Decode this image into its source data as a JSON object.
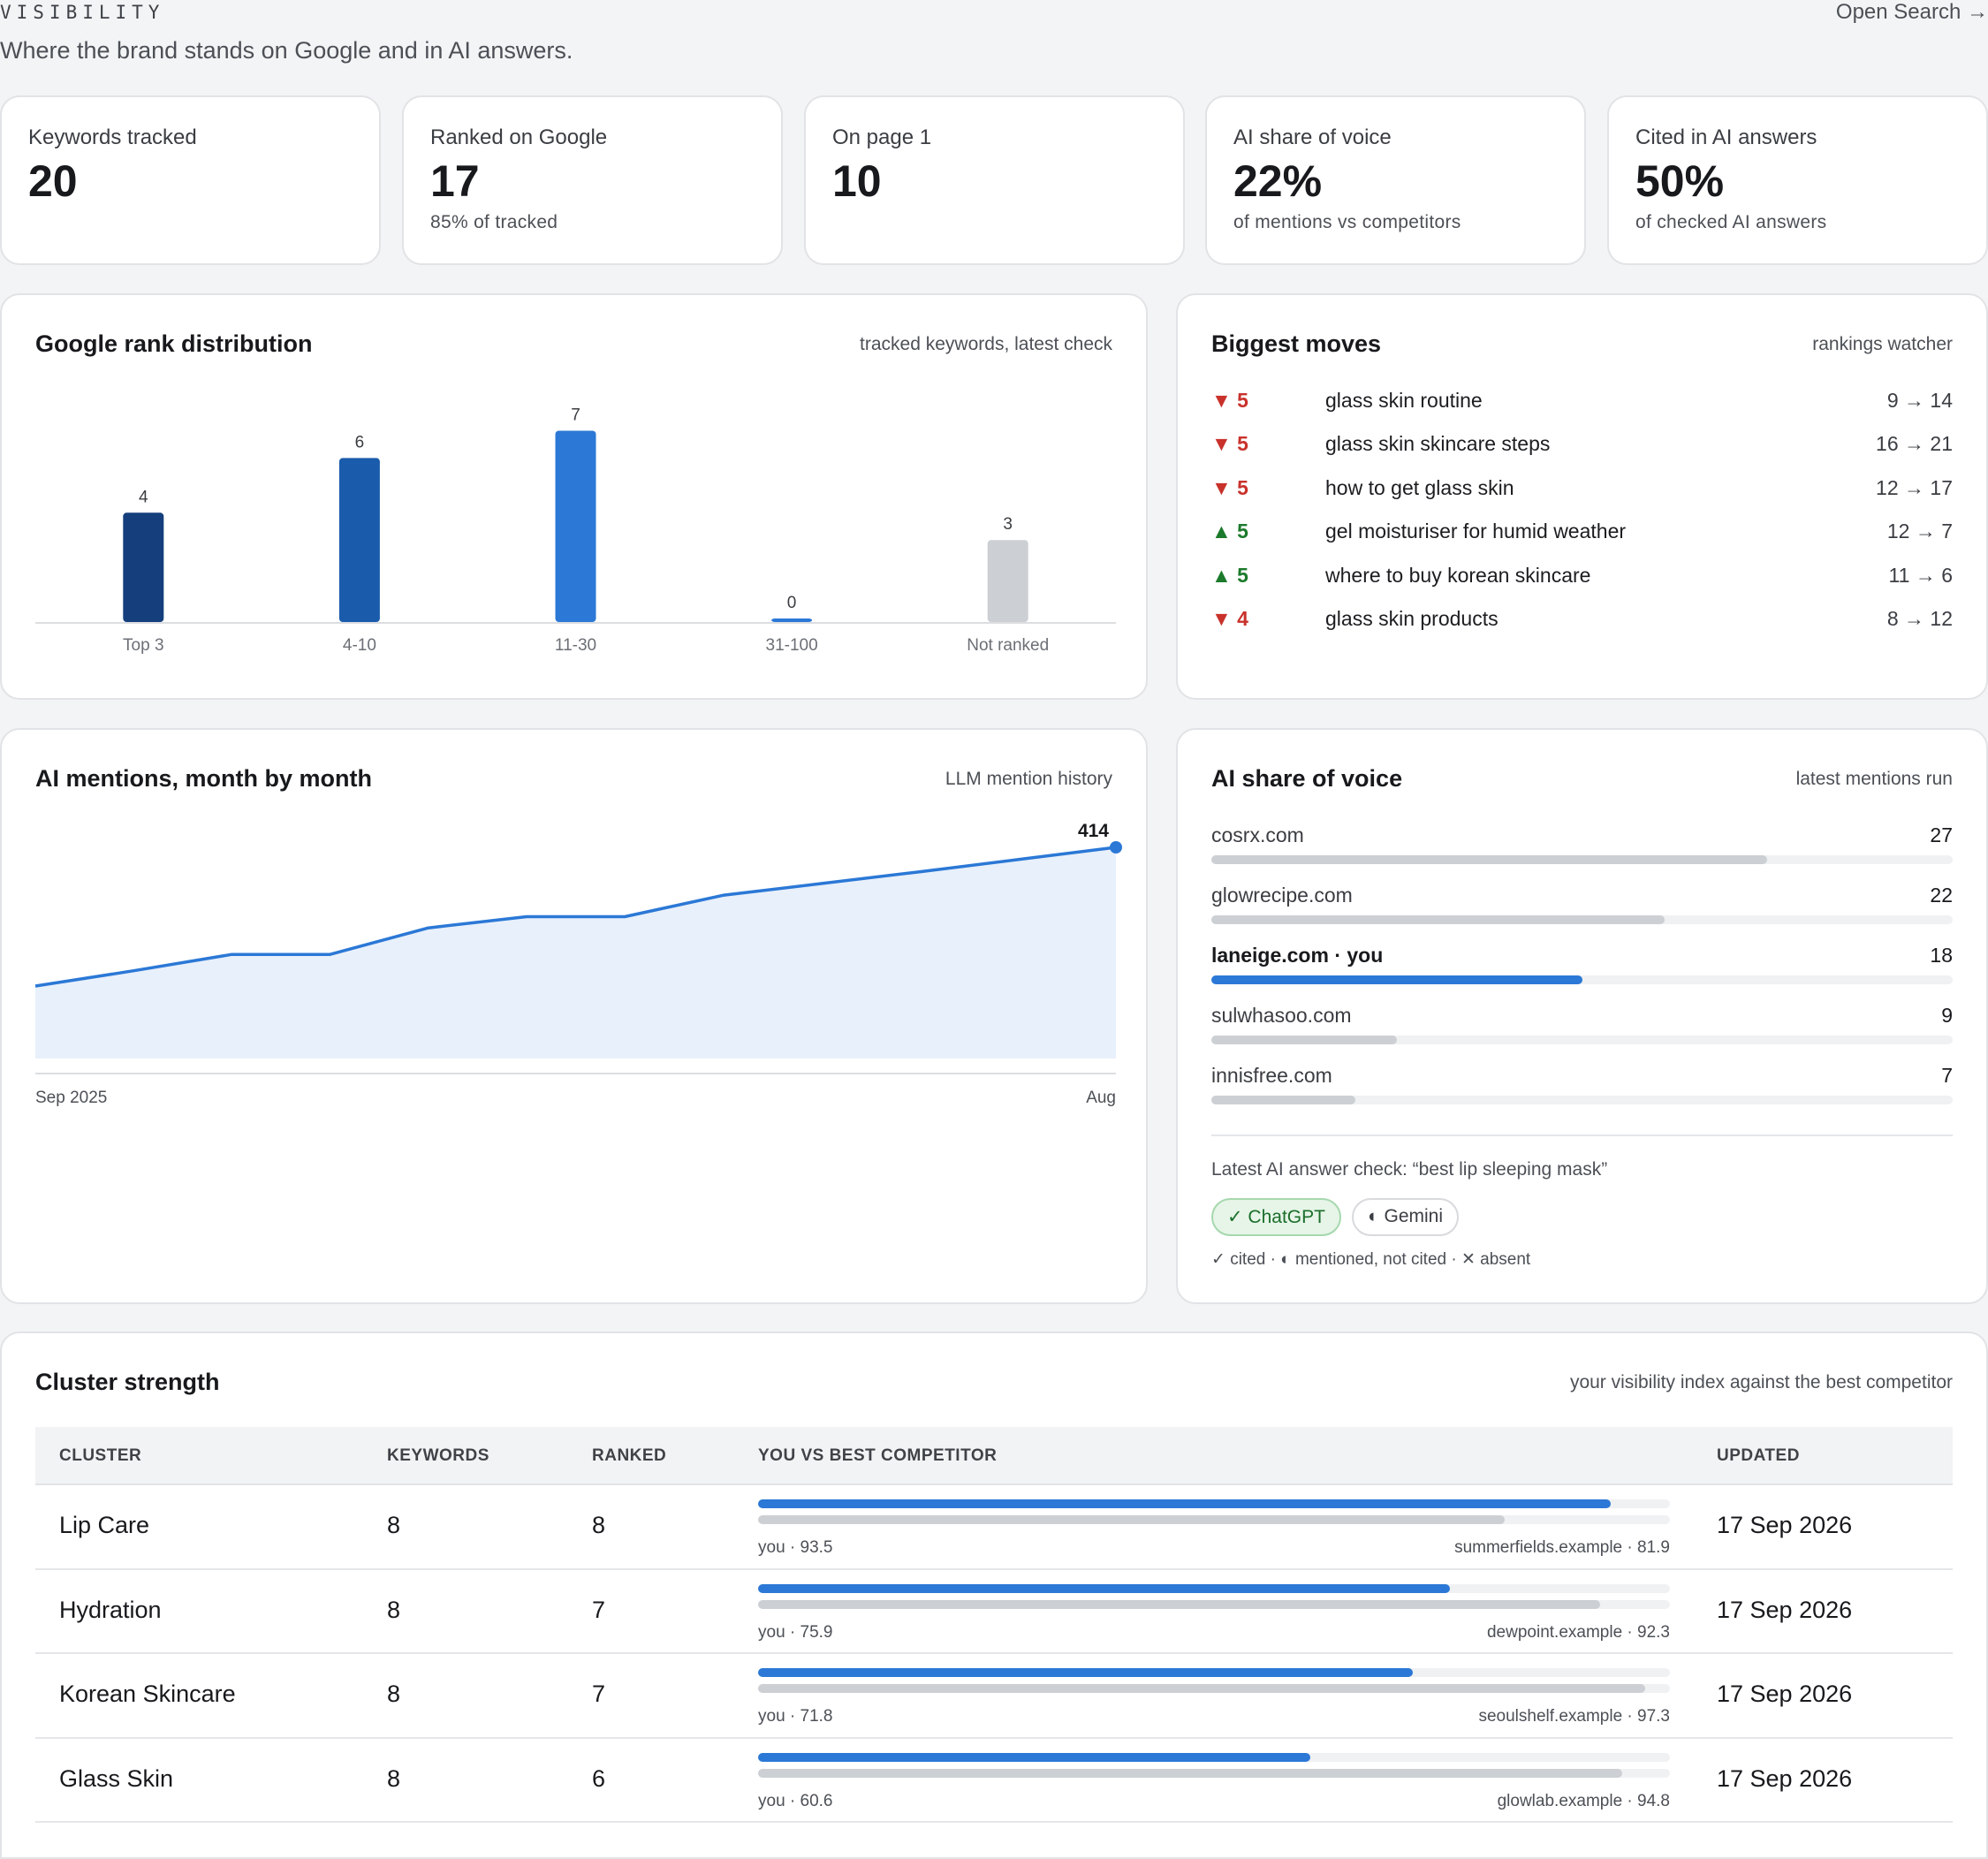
{
  "header": {
    "eyebrow": "VISIBILITY",
    "subtitle": "Where the brand stands on Google and in AI answers.",
    "open_search": "Open Search →"
  },
  "kpis": [
    {
      "label": "Keywords tracked",
      "value": "20",
      "note": ""
    },
    {
      "label": "Ranked on Google",
      "value": "17",
      "note": "85% of tracked"
    },
    {
      "label": "On page 1",
      "value": "10",
      "note": ""
    },
    {
      "label": "AI share of voice",
      "value": "22%",
      "note": "of mentions vs competitors"
    },
    {
      "label": "Cited in AI answers",
      "value": "50%",
      "note": "of checked AI answers"
    }
  ],
  "rank_panel": {
    "title": "Google rank distribution",
    "subtitle": "tracked keywords, latest check"
  },
  "moves_panel": {
    "title": "Biggest moves",
    "subtitle": "rankings watcher",
    "items": [
      {
        "direction": "down",
        "delta": "▼ 5",
        "keyword": "glass skin routine",
        "positions": "9 → 14"
      },
      {
        "direction": "down",
        "delta": "▼ 5",
        "keyword": "glass skin skincare steps",
        "positions": "16 → 21"
      },
      {
        "direction": "down",
        "delta": "▼ 5",
        "keyword": "how to get glass skin",
        "positions": "12 → 17"
      },
      {
        "direction": "up",
        "delta": "▲ 5",
        "keyword": "gel moisturiser for humid weather",
        "positions": "12 → 7"
      },
      {
        "direction": "up",
        "delta": "▲ 5",
        "keyword": "where to buy korean skincare",
        "positions": "11 → 6"
      },
      {
        "direction": "down",
        "delta": "▼ 4",
        "keyword": "glass skin products",
        "positions": "8 → 12"
      }
    ]
  },
  "mentions_panel": {
    "title": "AI mentions, month by month",
    "subtitle": "LLM mention history"
  },
  "sov_panel": {
    "title": "AI share of voice",
    "subtitle": "latest mentions run",
    "max": 36,
    "items": [
      {
        "name": "cosrx.com",
        "value": 27,
        "you": false
      },
      {
        "name": "glowrecipe.com",
        "value": 22,
        "you": false
      },
      {
        "name": "laneige.com · you",
        "value": 18,
        "you": true
      },
      {
        "name": "sulwhasoo.com",
        "value": 9,
        "you": false
      },
      {
        "name": "innisfree.com",
        "value": 7,
        "you": false
      }
    ],
    "ai_check": "Latest AI answer check: “best lip sleeping mask”",
    "chips": [
      {
        "label": "✓ ChatGPT",
        "status": "cited"
      },
      {
        "label": "◐ Gemini",
        "status": "mentioned"
      }
    ],
    "legend": "✓ cited · ◐ mentioned, not cited · ✕ absent"
  },
  "cluster_panel": {
    "title": "Cluster strength",
    "subtitle": "your visibility index against the best competitor",
    "columns": [
      "CLUSTER",
      "KEYWORDS",
      "RANKED",
      "YOU VS BEST COMPETITOR",
      "UPDATED"
    ],
    "rows": [
      {
        "cluster": "Lip Care",
        "keywords": "8",
        "ranked": "8",
        "you": 93.5,
        "you_label": "you · 93.5",
        "competitor": 81.9,
        "competitor_label": "summerfields.example · 81.9",
        "updated": "17 Sep 2026"
      },
      {
        "cluster": "Hydration",
        "keywords": "8",
        "ranked": "7",
        "you": 75.9,
        "you_label": "you · 75.9",
        "competitor": 92.3,
        "competitor_label": "dewpoint.example · 92.3",
        "updated": "17 Sep 2026"
      },
      {
        "cluster": "Korean Skincare",
        "keywords": "8",
        "ranked": "7",
        "you": 71.8,
        "you_label": "you · 71.8",
        "competitor": 97.3,
        "competitor_label": "seoulshelf.example · 97.3",
        "updated": "17 Sep 2026"
      },
      {
        "cluster": "Glass Skin",
        "keywords": "8",
        "ranked": "6",
        "you": 60.6,
        "you_label": "you · 60.6",
        "competitor": 94.8,
        "competitor_label": "glowlab.example · 94.8",
        "updated": "17 Sep 2026"
      }
    ]
  },
  "colors": {
    "accent": "#2b78d6",
    "down": "#c8322b",
    "up": "#1b7a2b",
    "neutral_bar": "#cccfd3"
  },
  "chart_data": [
    {
      "type": "bar",
      "title": "Google rank distribution",
      "categories": [
        "Top 3",
        "4-10",
        "11-30",
        "31-100",
        "Not ranked"
      ],
      "values": [
        4,
        6,
        7,
        0,
        3
      ],
      "colors": [
        "#143f7c",
        "#1a5cab",
        "#2b78d6",
        "#2b78d6",
        "#cccfd3"
      ],
      "ylim": [
        0,
        7.5
      ],
      "grid": false
    },
    {
      "type": "area",
      "title": "AI mentions, month by month",
      "x_labels": [
        "Sep 2025",
        "Aug"
      ],
      "values": [
        142,
        172,
        204,
        204,
        256,
        278,
        278,
        320,
        343,
        366,
        390,
        414
      ],
      "end_label": "414",
      "ylim": [
        0,
        440
      ],
      "grid": false
    }
  ]
}
